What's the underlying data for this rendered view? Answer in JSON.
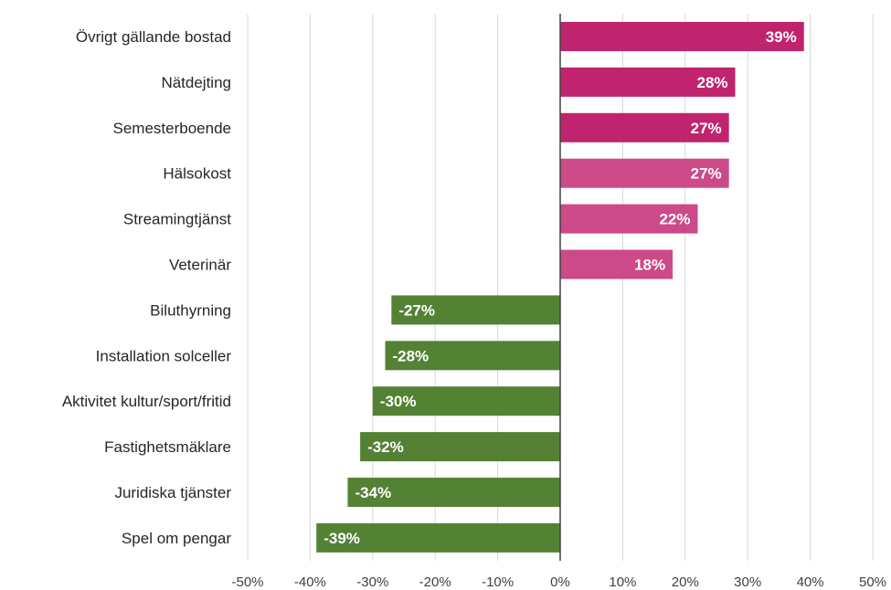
{
  "chart_data": {
    "type": "bar",
    "orientation": "horizontal",
    "title": "",
    "xlabel": "",
    "ylabel": "",
    "xlim": [
      -50,
      50
    ],
    "xticks": [
      -50,
      -40,
      -30,
      -20,
      -10,
      0,
      10,
      20,
      30,
      40,
      50
    ],
    "xtick_labels": [
      "-50%",
      "-40%",
      "-30%",
      "-20%",
      "-10%",
      "0%",
      "10%",
      "20%",
      "30%",
      "40%",
      "50%"
    ],
    "grid": "vertical",
    "legend": "none",
    "categories": [
      "Övrigt gällande bostad",
      "Nätdejting",
      "Semesterboende",
      "Hälsokost",
      "Streamingtjänst",
      "Veterinär",
      "Biluthyrning",
      "Installation solceller",
      "Aktivitet kultur/sport/fritid",
      "Fastighetsmäklare",
      "Juridiska tjänster",
      "Spel om pengar"
    ],
    "values": [
      39,
      28,
      27,
      27,
      22,
      18,
      -27,
      -28,
      -30,
      -32,
      -34,
      -39
    ],
    "data_labels": [
      "39%",
      "28%",
      "27%",
      "27%",
      "22%",
      "18%",
      "-27%",
      "-28%",
      "-30%",
      "-32%",
      "-34%",
      "-39%"
    ],
    "colors": [
      "#c0246e",
      "#c0246e",
      "#c0246e",
      "#cc4a87",
      "#cc4a87",
      "#cc4a87",
      "#548235",
      "#548235",
      "#548235",
      "#548235",
      "#548235",
      "#548235"
    ]
  }
}
